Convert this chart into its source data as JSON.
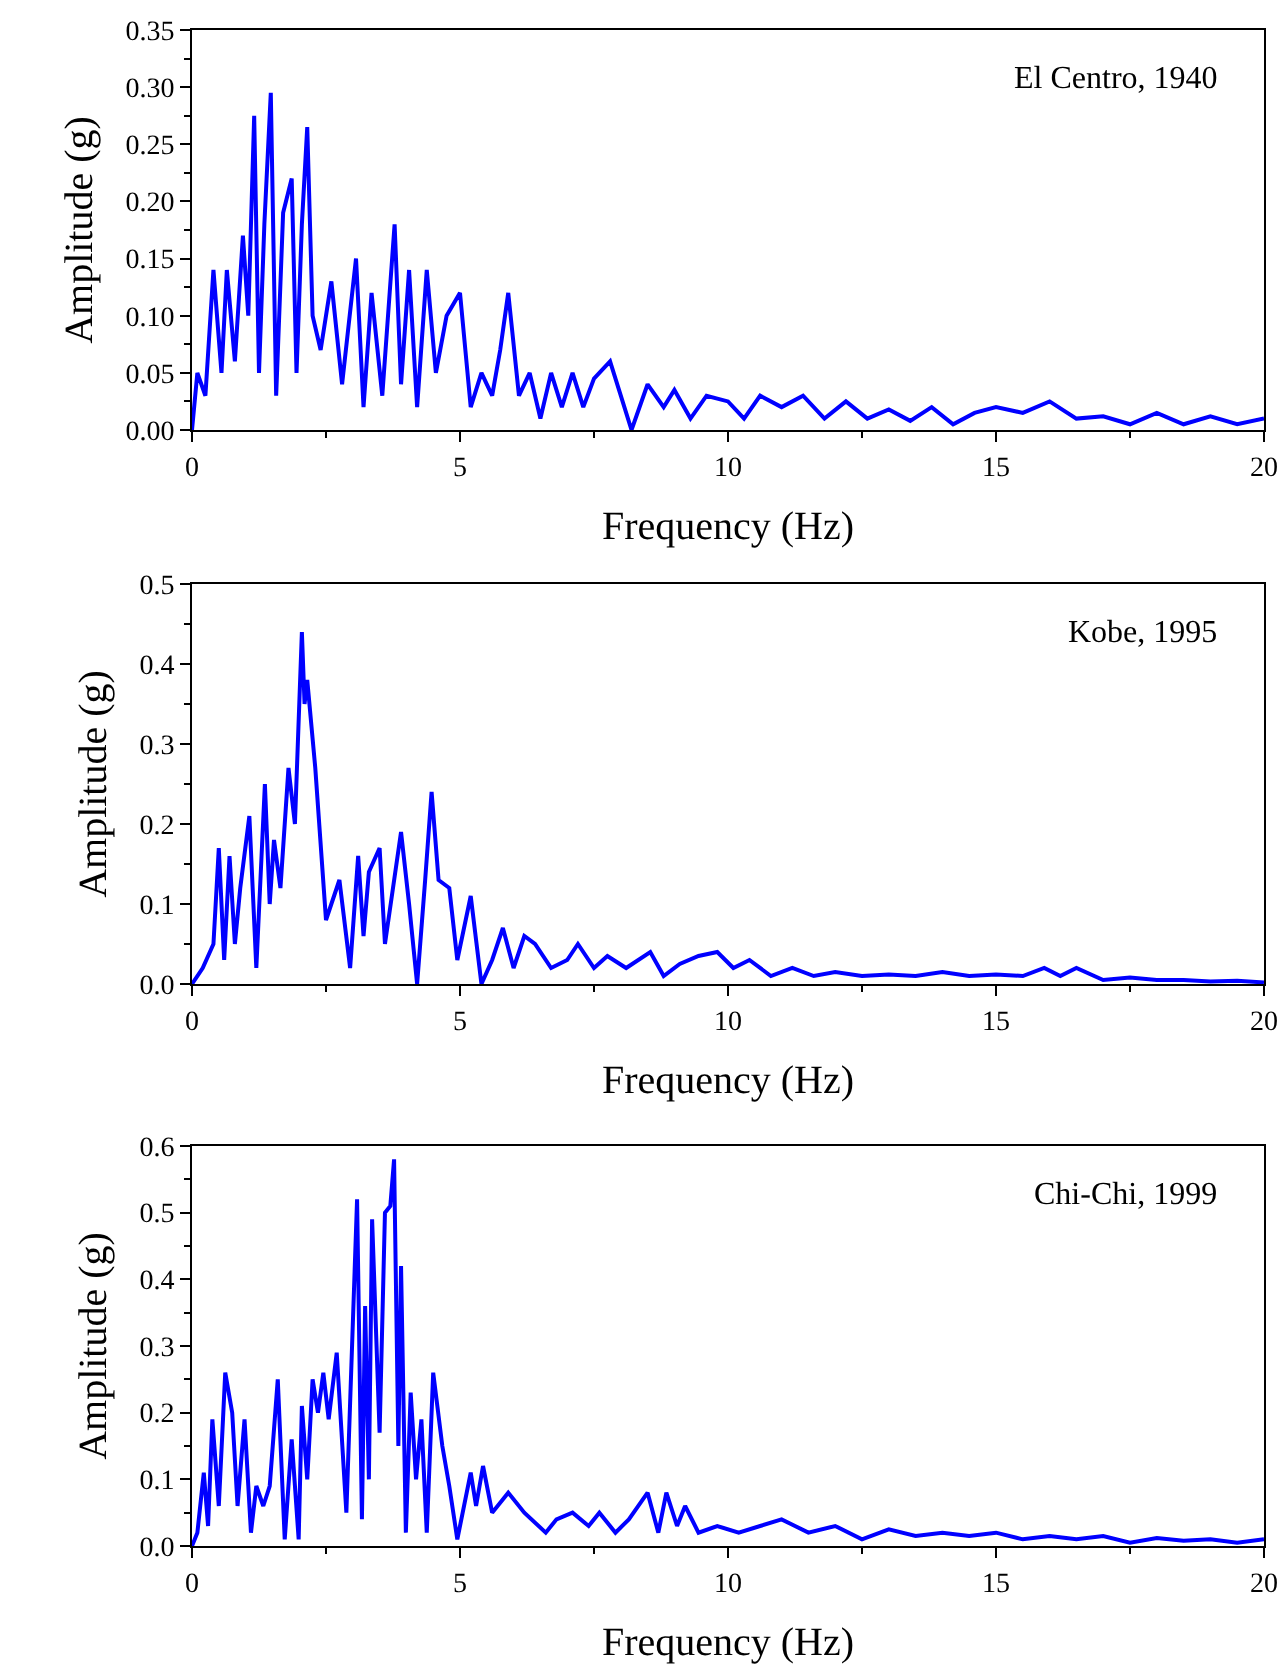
{
  "chart_data": [
    {
      "type": "line",
      "xlabel": "Frequency (Hz)",
      "ylabel": "Amplitude (g)",
      "annotations": [
        "El Centro, 1940"
      ],
      "xlim": [
        0,
        20
      ],
      "xticks": [
        0,
        5,
        10,
        15,
        20
      ],
      "ylim": [
        0,
        0.35
      ],
      "yticks": [
        {
          "value": 0,
          "label": "0.00"
        },
        {
          "value": 0.05,
          "label": "0.05"
        },
        {
          "value": 0.1,
          "label": "0.10"
        },
        {
          "value": 0.15,
          "label": "0.15"
        },
        {
          "value": 0.2,
          "label": "0.20"
        },
        {
          "value": 0.25,
          "label": "0.25"
        },
        {
          "value": 0.3,
          "label": "0.30"
        },
        {
          "value": 0.35,
          "label": "0.35"
        }
      ],
      "line_style": "solid",
      "series": [
        {
          "color": "#0000ff",
          "x": [
            0,
            0.1,
            0.25,
            0.4,
            0.55,
            0.65,
            0.8,
            0.95,
            1.05,
            1.16,
            1.25,
            1.35,
            1.47,
            1.57,
            1.7,
            1.86,
            1.95,
            2.05,
            2.15,
            2.25,
            2.4,
            2.6,
            2.8,
            3.06,
            3.2,
            3.35,
            3.55,
            3.78,
            3.9,
            4.05,
            4.2,
            4.38,
            4.55,
            4.75,
            5.0,
            5.2,
            5.4,
            5.6,
            5.75,
            5.9,
            6.1,
            6.3,
            6.5,
            6.7,
            6.9,
            7.1,
            7.3,
            7.5,
            7.8,
            8.0,
            8.2,
            8.5,
            8.8,
            9.0,
            9.3,
            9.6,
            10.0,
            10.3,
            10.6,
            11.0,
            11.4,
            11.8,
            12.2,
            12.6,
            13.0,
            13.4,
            13.8,
            14.2,
            14.6,
            15.0,
            15.5,
            16.0,
            16.5,
            17.0,
            17.5,
            18.0,
            18.5,
            19.0,
            19.5,
            20
          ],
          "values": [
            0.0,
            0.05,
            0.03,
            0.14,
            0.05,
            0.14,
            0.06,
            0.17,
            0.1,
            0.275,
            0.05,
            0.18,
            0.295,
            0.03,
            0.19,
            0.22,
            0.05,
            0.18,
            0.265,
            0.1,
            0.07,
            0.13,
            0.04,
            0.15,
            0.02,
            0.12,
            0.03,
            0.18,
            0.04,
            0.14,
            0.02,
            0.14,
            0.05,
            0.1,
            0.12,
            0.02,
            0.05,
            0.03,
            0.07,
            0.12,
            0.03,
            0.05,
            0.01,
            0.05,
            0.02,
            0.05,
            0.02,
            0.045,
            0.06,
            0.03,
            0.0,
            0.04,
            0.02,
            0.035,
            0.01,
            0.03,
            0.025,
            0.01,
            0.03,
            0.02,
            0.03,
            0.01,
            0.025,
            0.01,
            0.018,
            0.008,
            0.02,
            0.005,
            0.015,
            0.02,
            0.015,
            0.025,
            0.01,
            0.012,
            0.005,
            0.015,
            0.005,
            0.012,
            0.005,
            0.01
          ]
        }
      ]
    },
    {
      "type": "line",
      "xlabel": "Frequency (Hz)",
      "ylabel": "Amplitude (g)",
      "annotations": [
        "Kobe, 1995"
      ],
      "xlim": [
        0,
        20
      ],
      "xticks": [
        0,
        5,
        10,
        15,
        20
      ],
      "ylim": [
        0,
        0.5
      ],
      "yticks": [
        {
          "value": 0,
          "label": "0.0"
        },
        {
          "value": 0.1,
          "label": "0.1"
        },
        {
          "value": 0.2,
          "label": "0.2"
        },
        {
          "value": 0.3,
          "label": "0.3"
        },
        {
          "value": 0.4,
          "label": "0.4"
        },
        {
          "value": 0.5,
          "label": "0.5"
        }
      ],
      "line_style": "solid",
      "series": [
        {
          "color": "#0000ff",
          "x": [
            0,
            0.2,
            0.4,
            0.5,
            0.6,
            0.7,
            0.8,
            0.9,
            1.07,
            1.2,
            1.36,
            1.45,
            1.53,
            1.65,
            1.8,
            1.92,
            2.05,
            2.1,
            2.15,
            2.3,
            2.5,
            2.6,
            2.75,
            2.95,
            3.1,
            3.2,
            3.3,
            3.5,
            3.6,
            3.9,
            4.05,
            4.2,
            4.35,
            4.47,
            4.6,
            4.8,
            4.95,
            5.2,
            5.4,
            5.6,
            5.8,
            6.0,
            6.2,
            6.4,
            6.7,
            7.0,
            7.2,
            7.5,
            7.75,
            8.1,
            8.55,
            8.8,
            9.1,
            9.45,
            9.8,
            10.1,
            10.4,
            10.8,
            11.2,
            11.6,
            12.0,
            12.5,
            13.0,
            13.5,
            14.0,
            14.5,
            15.0,
            15.5,
            15.9,
            16.2,
            16.5,
            17.0,
            17.5,
            18.0,
            18.5,
            19.0,
            19.5,
            20
          ],
          "values": [
            0.0,
            0.02,
            0.05,
            0.17,
            0.03,
            0.16,
            0.05,
            0.12,
            0.21,
            0.02,
            0.25,
            0.1,
            0.18,
            0.12,
            0.27,
            0.2,
            0.44,
            0.35,
            0.38,
            0.27,
            0.08,
            0.1,
            0.13,
            0.02,
            0.16,
            0.06,
            0.14,
            0.17,
            0.05,
            0.19,
            0.1,
            0.0,
            0.13,
            0.24,
            0.13,
            0.12,
            0.03,
            0.11,
            0.0,
            0.03,
            0.07,
            0.02,
            0.06,
            0.05,
            0.02,
            0.03,
            0.05,
            0.02,
            0.035,
            0.02,
            0.04,
            0.01,
            0.025,
            0.035,
            0.04,
            0.02,
            0.03,
            0.01,
            0.02,
            0.01,
            0.015,
            0.01,
            0.012,
            0.01,
            0.015,
            0.01,
            0.012,
            0.01,
            0.02,
            0.01,
            0.02,
            0.005,
            0.008,
            0.005,
            0.005,
            0.003,
            0.004,
            0.002
          ]
        }
      ]
    },
    {
      "type": "line",
      "xlabel": "Frequency (Hz)",
      "ylabel": "Amplitude (g)",
      "annotations": [
        "Chi-Chi, 1999"
      ],
      "xlim": [
        0,
        20
      ],
      "xticks": [
        0,
        5,
        10,
        15,
        20
      ],
      "ylim": [
        0,
        0.6
      ],
      "yticks": [
        {
          "value": 0,
          "label": "0.0"
        },
        {
          "value": 0.1,
          "label": "0.1"
        },
        {
          "value": 0.2,
          "label": "0.2"
        },
        {
          "value": 0.3,
          "label": "0.3"
        },
        {
          "value": 0.4,
          "label": "0.4"
        },
        {
          "value": 0.5,
          "label": "0.5"
        },
        {
          "value": 0.6,
          "label": "0.6"
        }
      ],
      "line_style": "solid",
      "series": [
        {
          "color": "#0000ff",
          "x": [
            0,
            0.1,
            0.22,
            0.3,
            0.38,
            0.5,
            0.62,
            0.75,
            0.85,
            0.98,
            1.1,
            1.2,
            1.33,
            1.45,
            1.6,
            1.73,
            1.86,
            1.99,
            2.05,
            2.15,
            2.25,
            2.35,
            2.45,
            2.55,
            2.7,
            2.88,
            3.08,
            3.17,
            3.23,
            3.3,
            3.36,
            3.5,
            3.6,
            3.7,
            3.77,
            3.85,
            3.9,
            3.99,
            4.08,
            4.18,
            4.28,
            4.38,
            4.5,
            4.67,
            4.8,
            4.95,
            5.2,
            5.3,
            5.43,
            5.6,
            5.9,
            6.2,
            6.6,
            6.8,
            7.1,
            7.4,
            7.6,
            7.9,
            8.15,
            8.5,
            8.7,
            8.85,
            9.05,
            9.2,
            9.45,
            9.8,
            10.2,
            10.6,
            11.0,
            11.5,
            12.0,
            12.5,
            13.0,
            13.5,
            14.0,
            14.5,
            15.0,
            15.5,
            16.0,
            16.5,
            17.0,
            17.5,
            18.0,
            18.5,
            19.0,
            19.5,
            20
          ],
          "values": [
            0.0,
            0.02,
            0.11,
            0.03,
            0.19,
            0.06,
            0.26,
            0.2,
            0.06,
            0.19,
            0.02,
            0.09,
            0.06,
            0.09,
            0.25,
            0.01,
            0.16,
            0.01,
            0.21,
            0.1,
            0.25,
            0.2,
            0.26,
            0.19,
            0.29,
            0.05,
            0.52,
            0.04,
            0.36,
            0.1,
            0.49,
            0.17,
            0.5,
            0.51,
            0.58,
            0.15,
            0.42,
            0.02,
            0.23,
            0.1,
            0.19,
            0.02,
            0.26,
            0.15,
            0.09,
            0.01,
            0.11,
            0.06,
            0.12,
            0.05,
            0.08,
            0.05,
            0.02,
            0.04,
            0.05,
            0.03,
            0.05,
            0.02,
            0.04,
            0.08,
            0.02,
            0.08,
            0.03,
            0.06,
            0.02,
            0.03,
            0.02,
            0.03,
            0.04,
            0.02,
            0.03,
            0.01,
            0.025,
            0.015,
            0.02,
            0.015,
            0.02,
            0.01,
            0.015,
            0.01,
            0.015,
            0.005,
            0.012,
            0.008,
            0.01,
            0.005,
            0.01
          ]
        }
      ]
    }
  ]
}
